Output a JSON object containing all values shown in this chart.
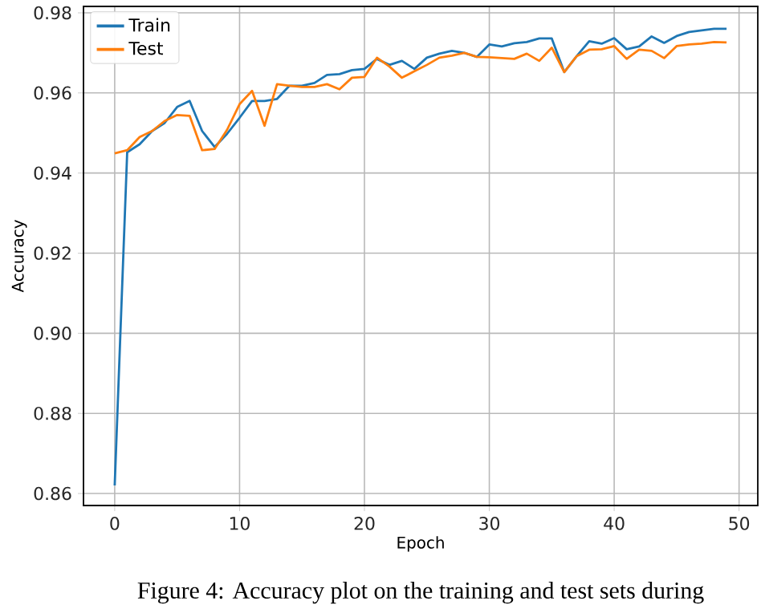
{
  "chart_data": {
    "type": "line",
    "xlabel": "Epoch",
    "ylabel": "Accuracy",
    "xlim": [
      -2.5,
      51.5
    ],
    "ylim": [
      0.857,
      0.9816
    ],
    "xticks": [
      0,
      10,
      20,
      30,
      40,
      50
    ],
    "yticks": [
      0.86,
      0.88,
      {
        "value": 0.9,
        "label": "0.90"
      },
      0.92,
      0.94,
      0.96,
      0.98
    ],
    "grid": true,
    "legend": "top left",
    "x": [
      0,
      1,
      2,
      3,
      4,
      5,
      6,
      7,
      8,
      9,
      10,
      11,
      12,
      13,
      14,
      15,
      16,
      17,
      18,
      19,
      20,
      21,
      22,
      23,
      24,
      25,
      26,
      27,
      28,
      29,
      30,
      31,
      32,
      33,
      34,
      35,
      36,
      37,
      38,
      39,
      40,
      41,
      42,
      43,
      44,
      45,
      46,
      47,
      48,
      49
    ],
    "series": [
      {
        "name": "Train",
        "color": "#1f77b4",
        "values": [
          0.862,
          0.9452,
          0.9472,
          0.9505,
          0.9525,
          0.9565,
          0.958,
          0.9505,
          0.9465,
          0.9498,
          0.9538,
          0.958,
          0.958,
          0.9585,
          0.9618,
          0.9618,
          0.9625,
          0.9645,
          0.9647,
          0.9657,
          0.966,
          0.9685,
          0.967,
          0.968,
          0.966,
          0.9688,
          0.9698,
          0.9705,
          0.97,
          0.969,
          0.9721,
          0.9716,
          0.9724,
          0.9727,
          0.9736,
          0.9736,
          0.9652,
          0.9692,
          0.9729,
          0.9723,
          0.9737,
          0.9709,
          0.9716,
          0.9741,
          0.9725,
          0.9742,
          0.9752,
          0.9756,
          0.976,
          0.976
        ]
      },
      {
        "name": "Test",
        "color": "#ff7f0e",
        "values": [
          0.9449,
          0.9457,
          0.949,
          0.9505,
          0.953,
          0.9545,
          0.9543,
          0.9457,
          0.946,
          0.9508,
          0.9572,
          0.9605,
          0.9518,
          0.9622,
          0.9618,
          0.9615,
          0.9615,
          0.9622,
          0.9609,
          0.9638,
          0.964,
          0.9688,
          0.9666,
          0.9638,
          0.9654,
          0.967,
          0.9688,
          0.9693,
          0.97,
          0.969,
          0.9689,
          0.9687,
          0.9685,
          0.9698,
          0.968,
          0.9713,
          0.9652,
          0.9692,
          0.9708,
          0.9709,
          0.9717,
          0.9685,
          0.9708,
          0.9705,
          0.9687,
          0.9717,
          0.9721,
          0.9723,
          0.9727,
          0.9726
        ]
      }
    ],
    "annotations": [
      "Figure 4: Accuracy plot on the training and test sets during"
    ]
  }
}
